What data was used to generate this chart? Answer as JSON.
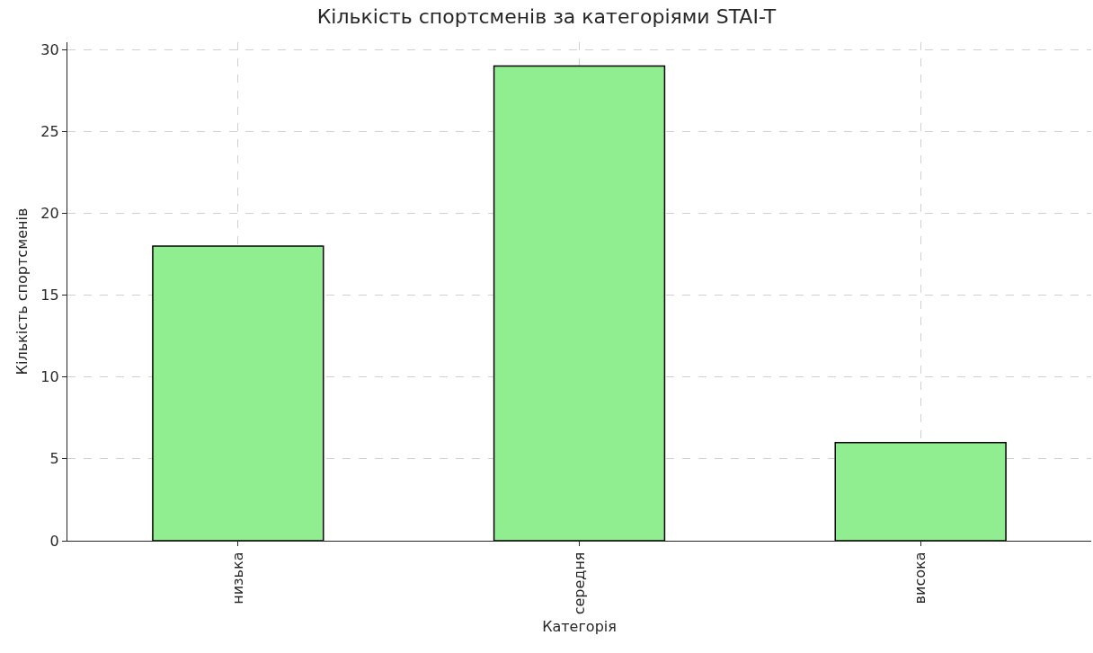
{
  "chart_data": {
    "type": "bar",
    "title": "Кількість спортсменів за категоріями STAI-T",
    "xlabel": "Категорія",
    "ylabel": "Кількість спортсменів",
    "categories": [
      "низька",
      "середня",
      "висока"
    ],
    "values": [
      18,
      29,
      6
    ],
    "color": "#90ee90",
    "ylim": [
      0,
      30.45
    ],
    "yticks": [
      0,
      5,
      10,
      15,
      20,
      25,
      30
    ],
    "grid": true,
    "legend": false
  }
}
